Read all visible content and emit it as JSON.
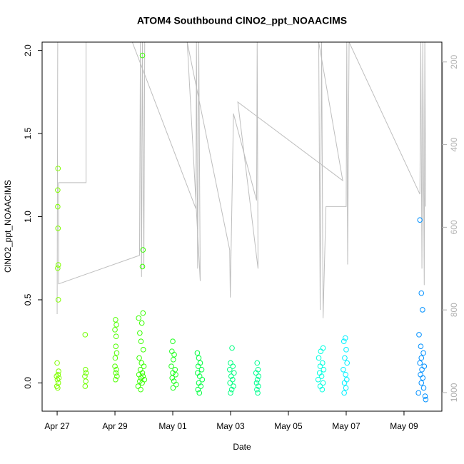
{
  "chart_data": {
    "type": "scatter",
    "title": "ATOM4 Southbound ClNO2_ppt_NOAACIMS",
    "x_label": "Date",
    "y_label": "ClNO2_ppt_NOAACIMS",
    "xlim": [
      26.48,
      40.31
    ],
    "xticks": [
      {
        "value": 27,
        "label": "Apr 27"
      },
      {
        "value": 29,
        "label": "Apr 29"
      },
      {
        "value": 31,
        "label": "May 01"
      },
      {
        "value": 33,
        "label": "May 03"
      },
      {
        "value": 35,
        "label": "May 05"
      },
      {
        "value": 37,
        "label": "May 07"
      },
      {
        "value": 39,
        "label": "May 09"
      }
    ],
    "ylim": [
      -0.17,
      2.05
    ],
    "yticks": [
      {
        "value": 0,
        "label": "0.0"
      },
      0.5,
      {
        "value": 1,
        "label": "1.0"
      },
      1.5,
      {
        "value": 2,
        "label": "2.0"
      }
    ],
    "y2lim": [
      1045,
      152
    ],
    "y2ticks": [
      200,
      400,
      600,
      800,
      1000
    ],
    "series": [
      {
        "axis": "y2",
        "kind": "line",
        "color": "#bebebe",
        "x": [
          27.0,
          27.02,
          28.0,
          28.0,
          27.05,
          27.05,
          29.85,
          29.88,
          29.92,
          29.95,
          30.0,
          30.03,
          29.6,
          31.8,
          31.82,
          31.86,
          31.9,
          31.95,
          31.5,
          32.97,
          32.99,
          33.1,
          33.9,
          33.92,
          33.95,
          33.25,
          36.88,
          36.05,
          36.1,
          36.15,
          36.2,
          36.3,
          37.0,
          37.02,
          37.05,
          37.1,
          39.55,
          39.58,
          39.62,
          39.65,
          39.7,
          39.72,
          39.75
        ],
        "values": [
          810,
          152,
          152,
          492,
          492,
          737,
          668,
          152,
          720,
          152,
          700,
          152,
          152,
          555,
          152,
          700,
          152,
          730,
          152,
          655,
          770,
          325,
          535,
          152,
          700,
          297,
          487,
          152,
          800,
          152,
          820,
          550,
          550,
          152,
          690,
          152,
          520,
          152,
          700,
          152,
          740,
          152,
          550
        ]
      },
      {
        "color": "#80ff00",
        "x": [
          27.03,
          27.02,
          27.02,
          27.03,
          27.04,
          27.02,
          27.04,
          27.0,
          27.05,
          27.03,
          26.98,
          27.06,
          27.01,
          27.04,
          26.99,
          27.02
        ],
        "values": [
          1.29,
          1.16,
          1.06,
          0.93,
          0.71,
          0.69,
          0.5,
          0.12,
          0.07,
          0.05,
          0.04,
          0.03,
          0.02,
          0.0,
          -0.02,
          -0.03
        ]
      },
      {
        "color": "#70ff00",
        "x": [
          27.97,
          27.98,
          28.0,
          27.96,
          27.99,
          27.97
        ],
        "values": [
          0.29,
          0.08,
          0.06,
          0.04,
          0.01,
          -0.02
        ]
      },
      {
        "color": "#50ff00",
        "x": [
          29.02,
          29.05,
          29.0,
          29.04,
          29.03,
          29.06,
          29.01,
          29.0,
          29.05,
          29.03,
          29.07,
          29.02
        ],
        "values": [
          0.38,
          0.35,
          0.32,
          0.28,
          0.22,
          0.18,
          0.15,
          0.1,
          0.08,
          0.06,
          0.04,
          0.02
        ]
      },
      {
        "color": "#38ff00",
        "x": [
          29.95,
          29.97,
          29.95,
          29.97,
          29.82,
          29.93,
          29.86,
          29.9,
          29.98,
          29.84,
          29.92,
          30.0,
          29.88,
          29.95,
          29.83,
          29.97,
          29.9,
          30.02,
          29.86,
          29.94,
          29.8,
          29.89
        ],
        "values": [
          1.97,
          0.8,
          0.7,
          0.42,
          0.39,
          0.36,
          0.3,
          0.25,
          0.2,
          0.15,
          0.12,
          0.1,
          0.08,
          0.06,
          0.05,
          0.04,
          0.03,
          0.02,
          0.01,
          0.0,
          -0.02,
          -0.04
        ]
      },
      {
        "color": "#20ff20",
        "x": [
          31.0,
          30.97,
          31.05,
          31.02,
          30.95,
          31.08,
          31.0,
          31.1,
          30.98,
          31.04,
          31.12,
          31.01
        ],
        "values": [
          0.25,
          0.19,
          0.17,
          0.14,
          0.1,
          0.08,
          0.06,
          0.05,
          0.03,
          0.01,
          -0.01,
          -0.03
        ]
      },
      {
        "color": "#00ff40",
        "x": [
          31.85,
          31.9,
          31.95,
          31.88,
          32.0,
          31.86,
          31.93,
          32.02,
          31.9,
          31.97,
          31.87,
          31.92
        ],
        "values": [
          0.18,
          0.15,
          0.12,
          0.1,
          0.08,
          0.06,
          0.04,
          0.02,
          0.0,
          -0.02,
          -0.04,
          -0.06
        ]
      },
      {
        "color": "#00ff80",
        "x": [
          33.05,
          33.0,
          33.08,
          32.97,
          33.12,
          33.02,
          33.07,
          32.98,
          33.1,
          33.04,
          33.0
        ],
        "values": [
          0.21,
          0.12,
          0.1,
          0.08,
          0.06,
          0.04,
          0.02,
          0.0,
          -0.02,
          -0.04,
          -0.06
        ]
      },
      {
        "color": "#00ff90",
        "x": [
          33.92,
          33.95,
          33.88,
          33.97,
          33.93,
          33.9,
          33.96,
          33.91,
          33.94
        ],
        "values": [
          0.12,
          0.08,
          0.06,
          0.04,
          0.02,
          0.0,
          -0.02,
          -0.04,
          -0.06
        ]
      },
      {
        "color": "#00ffe0",
        "x": [
          36.2,
          36.12,
          36.05,
          36.18,
          36.1,
          36.22,
          36.08,
          36.15,
          36.03,
          36.2,
          36.1,
          36.17
        ],
        "values": [
          0.21,
          0.19,
          0.15,
          0.12,
          0.1,
          0.08,
          0.06,
          0.04,
          0.02,
          0.0,
          -0.02,
          -0.04
        ]
      },
      {
        "color": "#00f0ff",
        "x": [
          36.97,
          36.92,
          37.0,
          36.95,
          37.03,
          36.9,
          36.98,
          37.02,
          36.94,
          36.99,
          36.93
        ],
        "values": [
          0.27,
          0.25,
          0.2,
          0.15,
          0.12,
          0.08,
          0.05,
          0.02,
          0.0,
          -0.03,
          -0.06
        ]
      },
      {
        "color": "#0090ff",
        "x": [
          39.55,
          39.6,
          39.64,
          39.52,
          39.58,
          39.67,
          39.6,
          39.55,
          39.7,
          39.62,
          39.57,
          39.65,
          39.6,
          39.68,
          39.5,
          39.73,
          39.75
        ],
        "values": [
          0.98,
          0.54,
          0.44,
          0.29,
          0.22,
          0.18,
          0.15,
          0.12,
          0.1,
          0.08,
          0.05,
          0.03,
          0.0,
          -0.03,
          -0.06,
          -0.08,
          -0.1
        ]
      }
    ]
  }
}
